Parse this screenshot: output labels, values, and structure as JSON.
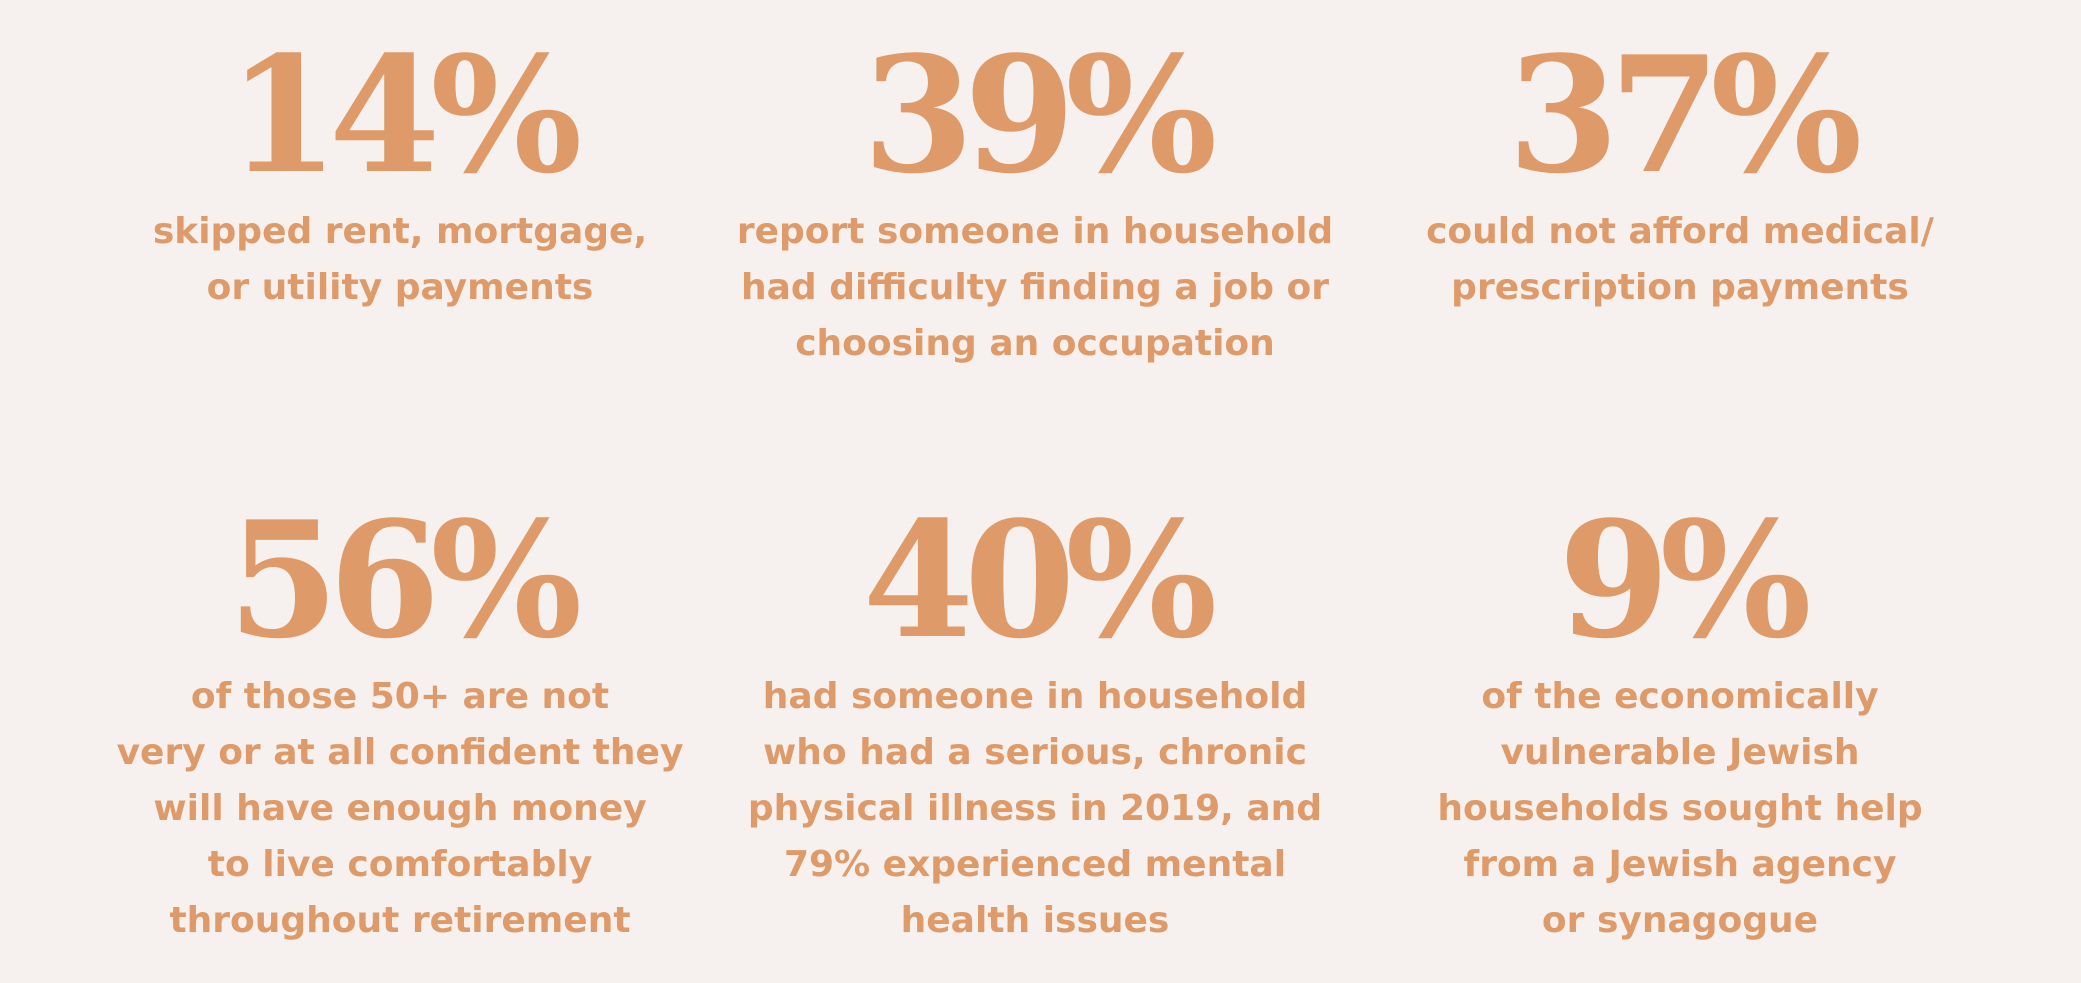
{
  "colors": {
    "background": "#f6f1ee",
    "accent": "#de9a68"
  },
  "stats": [
    {
      "number": "14%",
      "lines": [
        "skipped rent, mortgage,",
        "or utility payments"
      ]
    },
    {
      "number": "39%",
      "lines": [
        "report someone in household",
        "had difficulty finding a job or",
        "choosing an occupation"
      ]
    },
    {
      "number": "37%",
      "lines": [
        "could not afford medical/",
        "prescription payments"
      ]
    },
    {
      "number": "56%",
      "lines": [
        "of those 50+ are not",
        "very or at all confident they",
        "will have enough money",
        "to live comfortably",
        "throughout retirement"
      ]
    },
    {
      "number": "40%",
      "lines": [
        "had someone in household",
        "who had a serious, chronic",
        "physical illness in 2019, and"
      ],
      "highlight": "79%",
      "lines_after": [
        " experienced mental",
        "health issues"
      ]
    },
    {
      "number": "9%",
      "lines": [
        "of the economically",
        "vulnerable Jewish",
        "households sought help",
        "from a Jewish agency",
        "or synagogue"
      ]
    }
  ]
}
